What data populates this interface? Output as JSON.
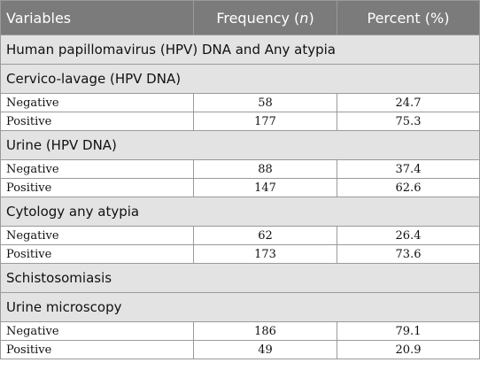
{
  "header": {
    "col1": "Variables",
    "col2_prefix": "Frequency (",
    "col2_italic": "n",
    "col2_suffix": ")",
    "col3": "Percent (%)"
  },
  "sections": {
    "hpv": "Human papillomavirus (HPV) DNA and Any atypia",
    "cervico": "Cervico-lavage (HPV DNA)",
    "urine_hpv": "Urine (HPV DNA)",
    "cytology": "Cytology any atypia",
    "schisto": "Schistosomiasis",
    "urine_micro": "Urine microscopy"
  },
  "rows": {
    "cervico": [
      {
        "label": "Negative",
        "n": "58",
        "pct": "24.7"
      },
      {
        "label": "Positive",
        "n": "177",
        "pct": "75.3"
      }
    ],
    "urine_hpv": [
      {
        "label": "Negative",
        "n": "88",
        "pct": "37.4"
      },
      {
        "label": "Positive",
        "n": "147",
        "pct": "62.6"
      }
    ],
    "cytology": [
      {
        "label": "Negative",
        "n": "62",
        "pct": "26.4"
      },
      {
        "label": "Positive",
        "n": "173",
        "pct": "73.6"
      }
    ],
    "urine_micro": [
      {
        "label": "Negative",
        "n": "186",
        "pct": "79.1"
      },
      {
        "label": "Positive",
        "n": "49",
        "pct": "20.9"
      }
    ]
  }
}
